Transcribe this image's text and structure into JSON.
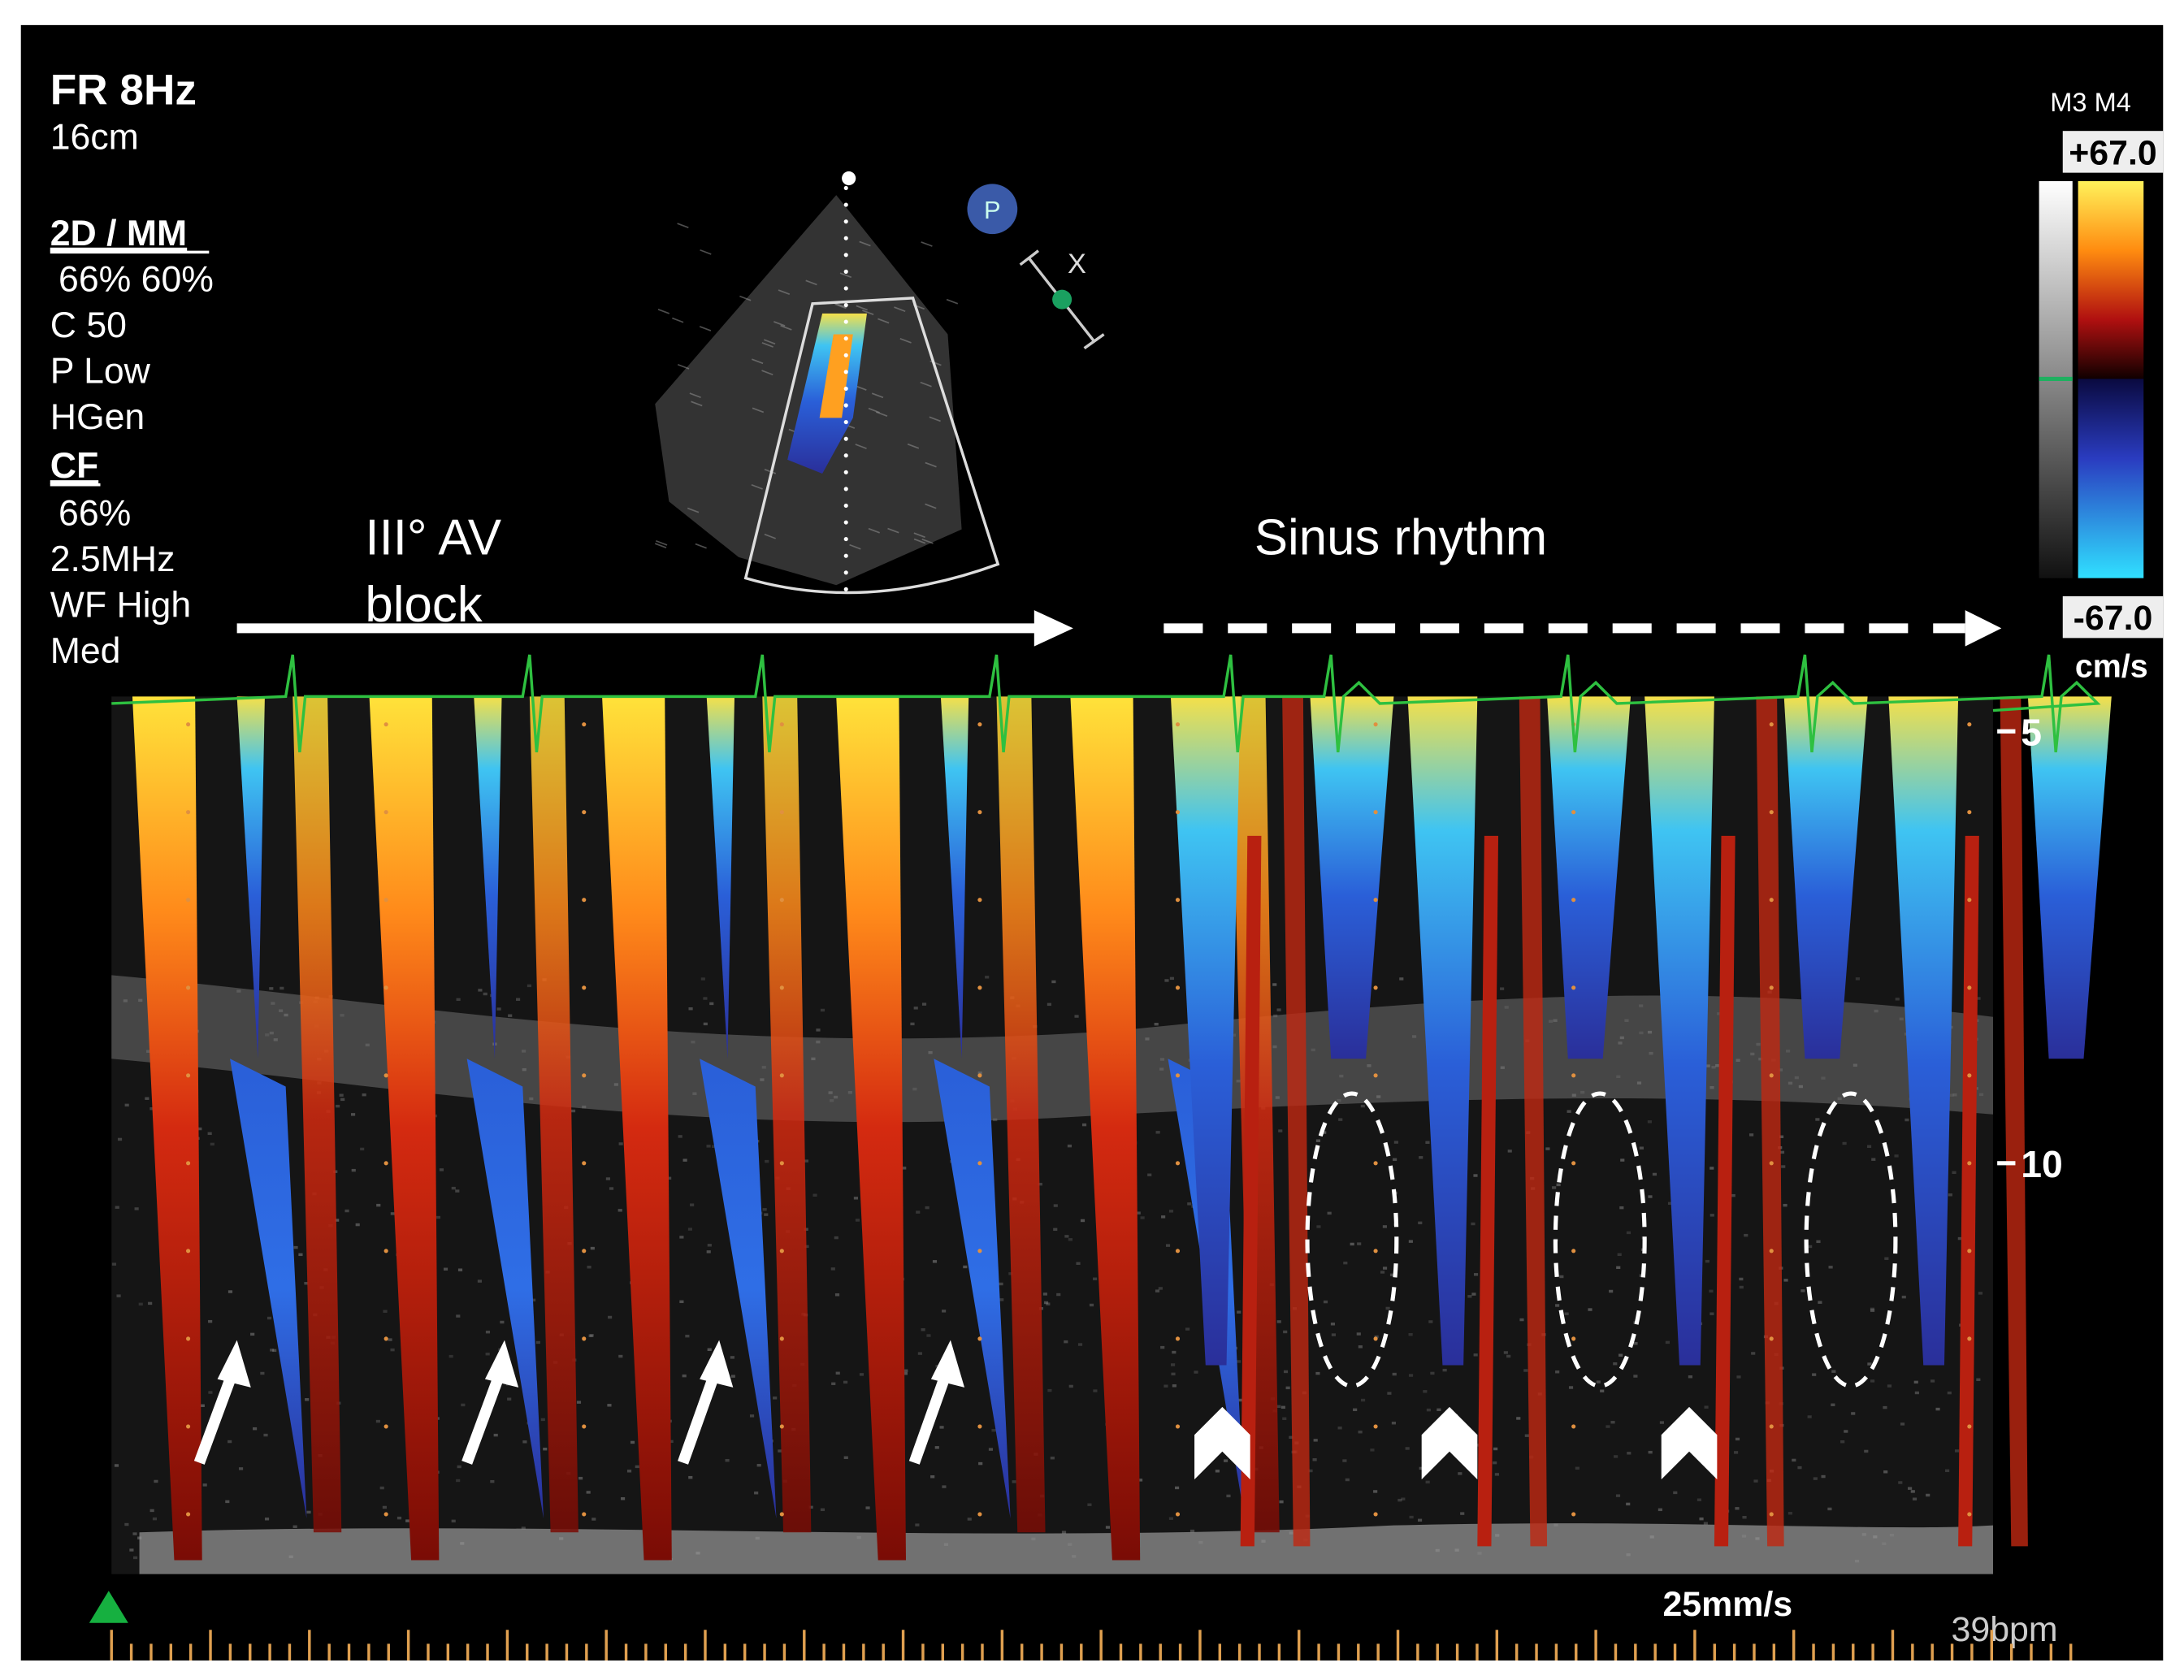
{
  "settings": {
    "lines": [
      "FR 8Hz",
      "16cm",
      "2D / MM",
      "66%   60%",
      "C 50",
      "P Low",
      "HGen",
      "CF",
      "66%",
      "2.5MHz",
      "WF High",
      "Med"
    ]
  },
  "probe_icon": "P",
  "marker_icon": "X",
  "annotations": {
    "av_block": [
      "III° AV",
      "block"
    ],
    "sinus": "Sinus rhythm"
  },
  "color_scale": {
    "modes": "M3 M4",
    "max": "+67.0",
    "min": "-67.0",
    "unit": "cm/s"
  },
  "depth_labels": [
    "5",
    "10"
  ],
  "footer": {
    "speed": "25mm/s",
    "heart_rate": "39bpm"
  }
}
